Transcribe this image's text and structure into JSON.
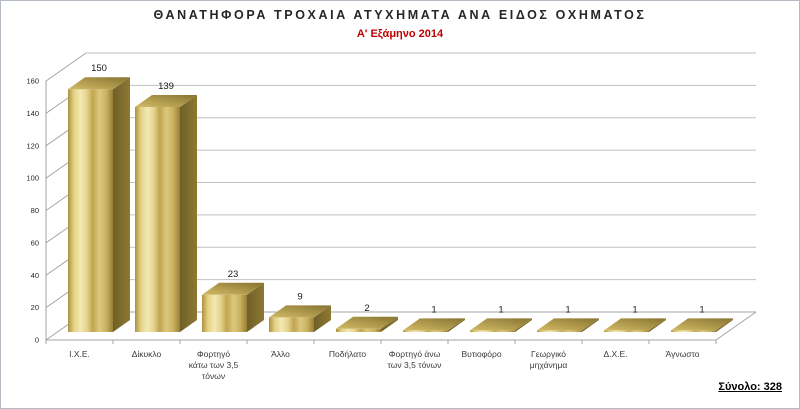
{
  "header": {
    "title": "ΘΑΝΑΤΗΦΟΡΑ ΤΡΟΧΑΙΑ ΑΤΥΧΗΜΑΤΑ ΑΝΑ ΕΙΔΟΣ ΟΧΗΜΑΤΟΣ",
    "subtitle": "Α' Εξάμηνο 2014",
    "title_color": "#262626",
    "subtitle_color": "#c00000"
  },
  "footer": {
    "total_label": "Σύνολο: 328"
  },
  "chart_data": {
    "type": "bar",
    "style": "3d-gold-columns",
    "title": "ΘΑΝΑΤΗΦΟΡΑ ΤΡΟΧΑΙΑ ΑΤΥΧΗΜΑΤΑ ΑΝΑ ΕΙΔΟΣ ΟΧΗΜΑΤΟΣ",
    "subtitle": "Α' Εξάμηνο 2014",
    "categories": [
      "Ι.Χ.Ε.",
      "Δίκυκλο",
      "Φορτηγό κάτω των 3,5 τόνων",
      "Άλλο",
      "Ποδήλατο",
      "Φορτηγό άνω των 3,5 τόνων",
      "Βυτιοφόρο",
      "Γεωργικό μηχάνημα",
      "Δ.Χ.Ε.",
      "Άγνωστο"
    ],
    "category_label_lines": [
      [
        "Ι.Χ.Ε."
      ],
      [
        "Δίκυκλο"
      ],
      [
        "Φορτηγό",
        "κάτω των 3,5",
        "τόνων"
      ],
      [
        "Άλλο"
      ],
      [
        "Ποδήλατο"
      ],
      [
        "Φορτηγό άνω",
        "των 3,5 τόνων"
      ],
      [
        "Βυτιοφόρο"
      ],
      [
        "Γεωργικό",
        "μηχάνημα"
      ],
      [
        "Δ.Χ.Ε."
      ],
      [
        "Άγνωστο"
      ]
    ],
    "values": [
      150,
      139,
      23,
      9,
      2,
      1,
      1,
      1,
      1,
      1
    ],
    "total": 328,
    "yticks": [
      0,
      20,
      40,
      60,
      80,
      100,
      120,
      140,
      160
    ],
    "ylim": [
      0,
      160
    ],
    "grid": true,
    "legend": false,
    "colors": {
      "face": [
        [
          0,
          "#ab9040"
        ],
        [
          0.13,
          "#e4d184"
        ],
        [
          0.28,
          "#f3e9b4"
        ],
        [
          0.42,
          "#e4d28c"
        ],
        [
          0.55,
          "#c1a550"
        ],
        [
          0.7,
          "#dcc87e"
        ],
        [
          0.85,
          "#c9b160"
        ],
        [
          1,
          "#977e34"
        ]
      ],
      "top": [
        [
          0,
          "#d3bb66"
        ],
        [
          1,
          "#877330"
        ]
      ],
      "side": [
        [
          0,
          "#6f6028"
        ],
        [
          1,
          "#8d7933"
        ]
      ],
      "gridline": "#c0c0c0",
      "axis": "#a3a3a3"
    }
  }
}
